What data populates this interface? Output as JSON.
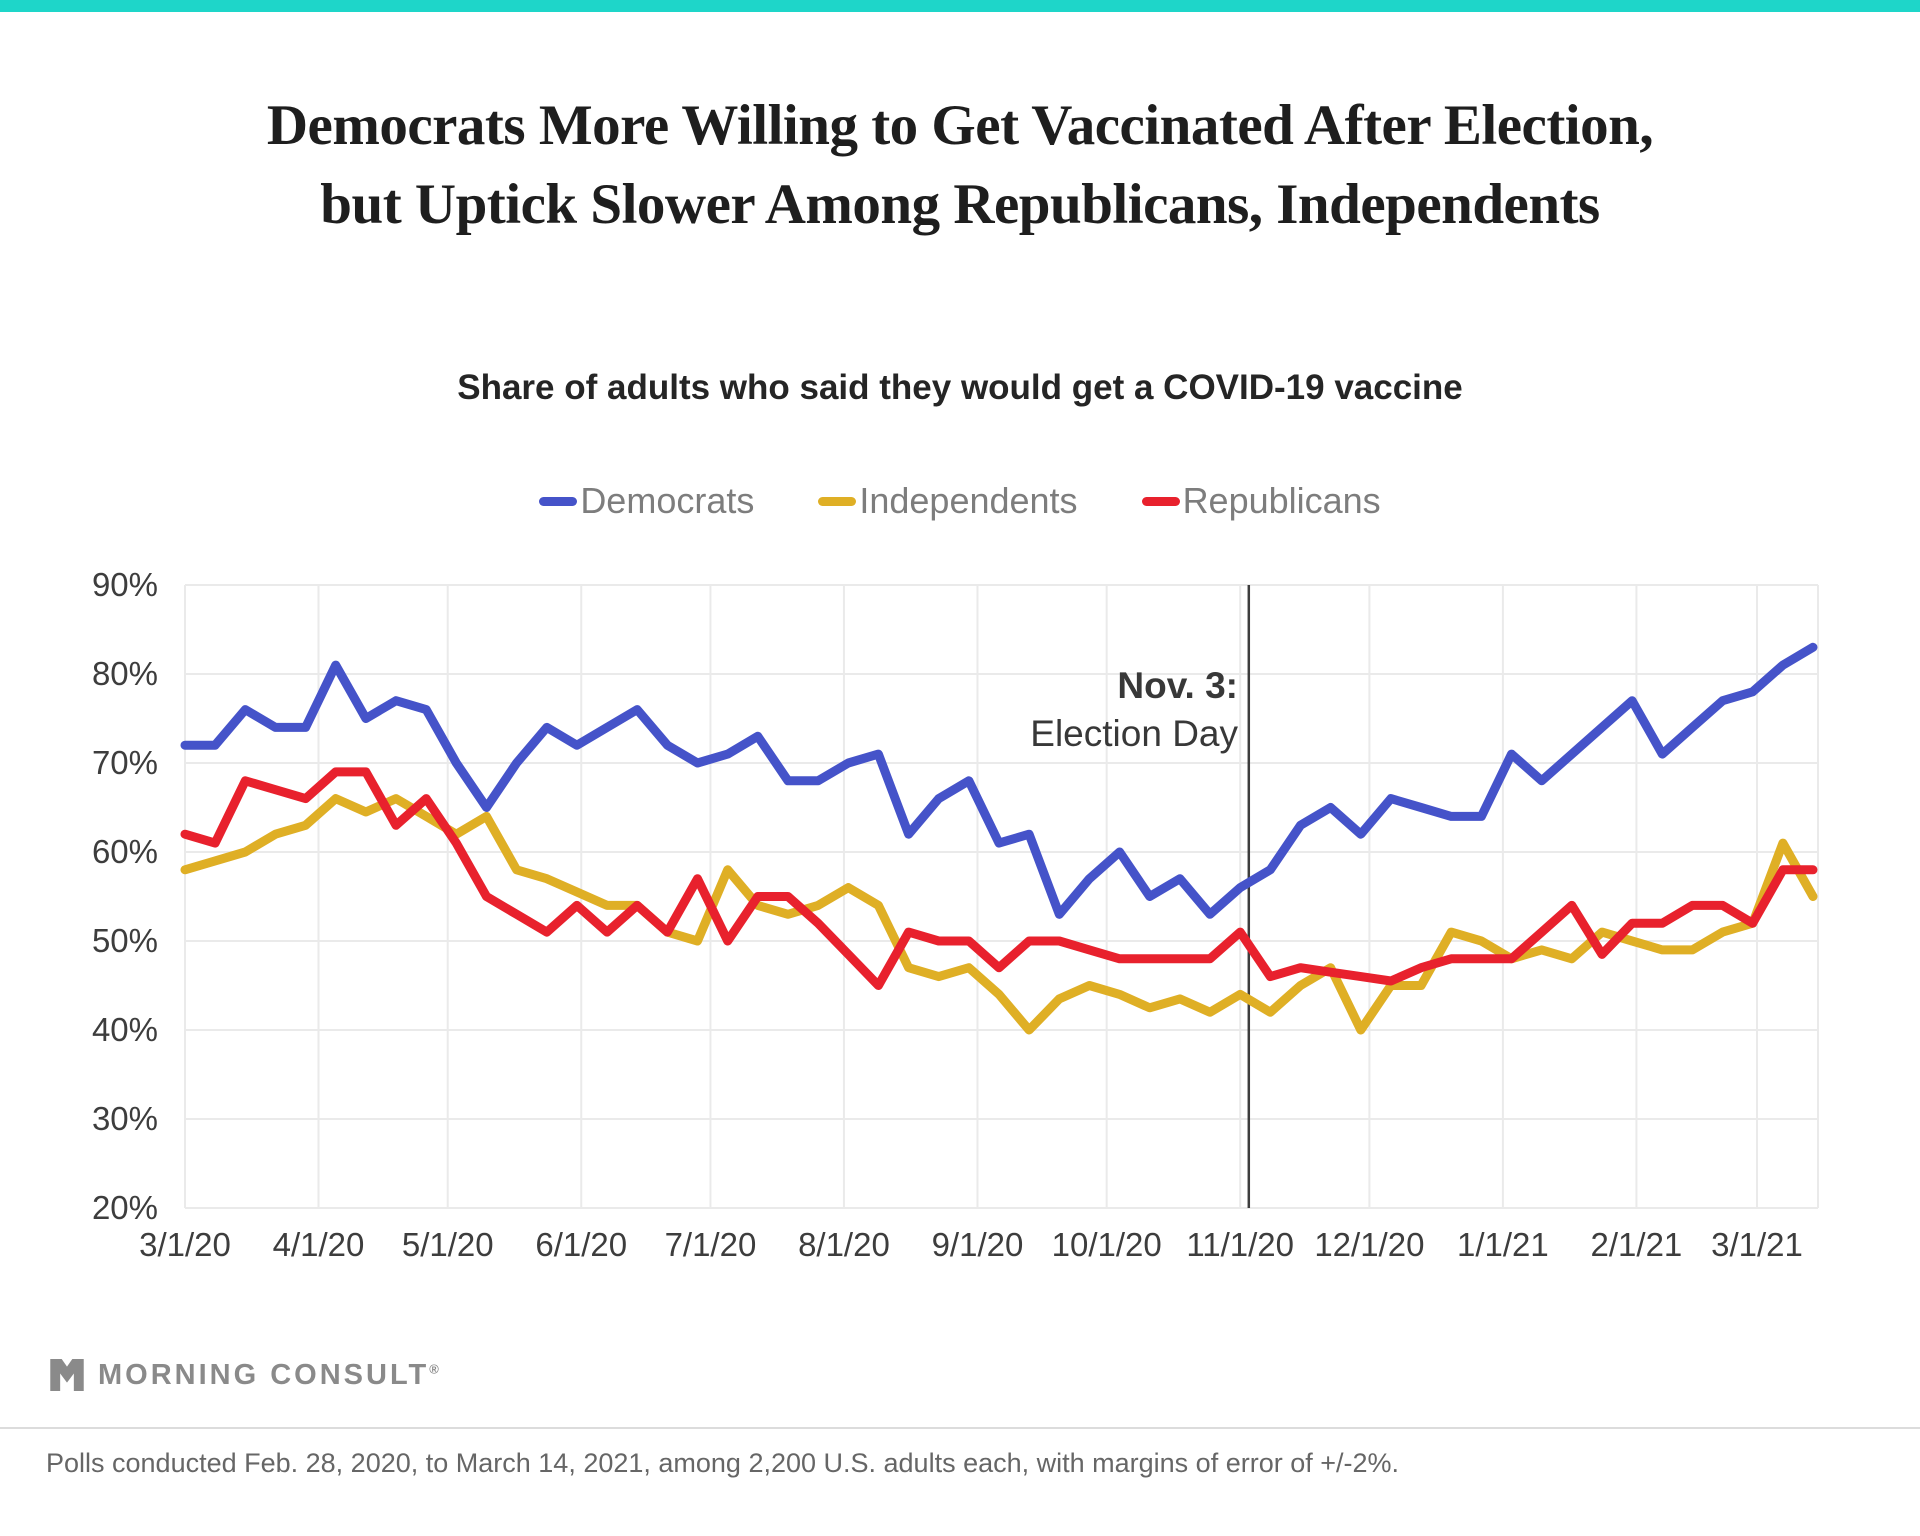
{
  "page": {
    "top_bar_color": "#1ED6C9",
    "background_color": "#ffffff"
  },
  "title": {
    "line1": "Democrats More Willing to Get Vaccinated After Election,",
    "line2": "but Uptick Slower Among Republicans, Independents"
  },
  "subtitle": "Share of adults who said they would get a COVID-19 vaccine",
  "chart_data": {
    "type": "line",
    "title": "Share of adults who said they would get a COVID-19 vaccine",
    "x_axis": "weekly polls, 2/28/20 - 3/14/21, plotted every 7 days",
    "ylabel": "",
    "ylim": [
      20,
      90
    ],
    "y_ticks": [
      90,
      80,
      70,
      60,
      50,
      40,
      30,
      20
    ],
    "y_tick_labels": [
      "90%",
      "80%",
      "70%",
      "60%",
      "50%",
      "40%",
      "30%",
      "20%"
    ],
    "x_tick_labels": [
      "3/1/20",
      "4/1/20",
      "5/1/20",
      "6/1/20",
      "7/1/20",
      "8/1/20",
      "9/1/20",
      "10/1/20",
      "11/1/20",
      "12/1/20",
      "1/1/21",
      "2/1/21",
      "3/1/21"
    ],
    "x_tick_days": [
      0,
      31,
      61,
      92,
      122,
      153,
      184,
      214,
      245,
      275,
      306,
      337,
      365
    ],
    "grid": true,
    "legend_position": "top-center",
    "series": [
      {
        "name": "Democrats",
        "color": "#4553C9",
        "values": [
          72,
          72,
          76,
          74,
          74,
          81,
          75,
          77,
          76,
          70,
          65,
          70,
          74,
          72,
          74,
          76,
          72,
          70,
          71,
          73,
          68,
          68,
          70,
          71,
          62,
          66,
          68,
          61,
          62,
          53,
          57,
          60,
          55,
          57,
          53,
          56,
          58,
          63,
          65,
          62,
          66,
          65,
          64,
          64,
          71,
          68,
          71,
          74,
          77,
          71,
          74,
          77,
          78,
          81,
          83
        ]
      },
      {
        "name": "Independents",
        "color": "#DFAF25",
        "values": [
          58,
          59,
          60,
          62,
          63,
          66,
          64.5,
          66,
          64,
          62,
          64,
          58,
          57,
          55.5,
          54,
          54,
          51,
          50,
          58,
          54,
          53,
          54,
          56,
          54,
          47,
          46,
          47,
          44,
          40,
          43.5,
          45,
          44,
          42.5,
          43.5,
          42,
          44,
          42,
          45,
          47,
          40,
          45,
          45,
          51,
          50,
          48,
          49,
          48,
          51,
          50,
          49,
          49,
          51,
          52,
          61,
          55
        ]
      },
      {
        "name": "Republicans",
        "color": "#E8212D",
        "values": [
          62,
          61,
          68,
          67,
          66,
          69,
          69,
          63,
          66,
          61,
          55,
          53,
          51,
          54,
          51,
          54,
          51,
          57,
          50,
          55,
          55,
          52,
          48.5,
          45,
          51,
          50,
          50,
          47,
          50,
          50,
          49,
          48,
          48,
          48,
          48,
          51,
          46,
          47,
          46.5,
          46,
          45.5,
          47,
          48,
          48,
          48,
          51,
          54,
          48.5,
          52,
          52,
          54,
          54,
          52,
          58,
          58
        ]
      }
    ],
    "annotation": {
      "line1": "Nov. 3:",
      "line2": "Election Day",
      "marker_day": 247
    }
  },
  "logo": {
    "text": "MORNING CONSULT",
    "registered": "®"
  },
  "footer": {
    "source_note": "Polls conducted Feb. 28, 2020, to March 14, 2021, among 2,200 U.S. adults each, with margins of error of +/-2%."
  }
}
